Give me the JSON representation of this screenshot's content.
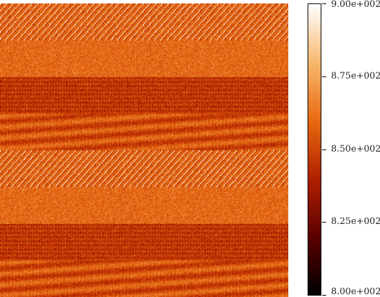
{
  "chart_data": {
    "type": "heatmap",
    "colormap": "black-red-orange-white",
    "colormap_stops": [
      "#000000",
      "#5a0000",
      "#b02000",
      "#e86a10",
      "#f8b870",
      "#ffffff"
    ],
    "value_range": [
      800,
      900
    ],
    "colorbar": {
      "ticks": [
        {
          "value": 900,
          "label": "9.00e+002"
        },
        {
          "value": 875,
          "label": "8.75e+002"
        },
        {
          "value": 850,
          "label": "8.50e+002"
        },
        {
          "value": 825,
          "label": "8.25e+002"
        },
        {
          "value": 800,
          "label": "8.00e+002"
        }
      ]
    },
    "band_pattern": [
      {
        "kind": "diagonal-stripes",
        "mean": 858
      },
      {
        "kind": "smooth",
        "mean": 860
      },
      {
        "kind": "dotted-grid",
        "mean": 848
      },
      {
        "kind": "streaky",
        "mean": 852
      },
      {
        "kind": "diagonal-stripes",
        "mean": 858
      },
      {
        "kind": "smooth",
        "mean": 860
      },
      {
        "kind": "dotted-grid",
        "mean": 848
      },
      {
        "kind": "streaky",
        "mean": 852
      }
    ]
  }
}
